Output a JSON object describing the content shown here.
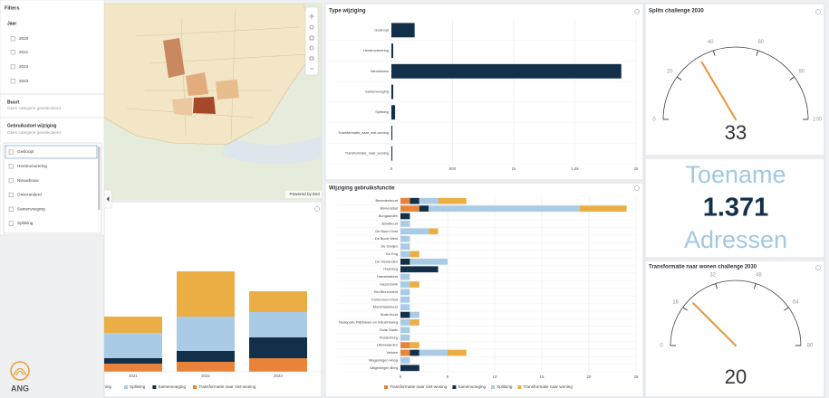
{
  "filters": {
    "title": "Filters",
    "year_label": "Jaar",
    "years": [
      "2020",
      "2021",
      "2022",
      "2023"
    ],
    "buurt_label": "Buurt",
    "buurt_value": "Geen categorie geselecteerd",
    "doel_label": "Gebruiksdoel wijziging",
    "doel_value": "Geen categorie geselecteerd",
    "options": [
      "Gesloopt",
      "Herstructurering",
      "Nieuwbouw",
      "Onveranderd",
      "Samenvoeging",
      "Splitsing"
    ]
  },
  "map": {
    "attribution": "Powered by Esri"
  },
  "logo": {
    "text": "ANG"
  },
  "kpi": {
    "top": "Toename",
    "value": "1.371",
    "bottom": "Adressen"
  },
  "chart_data": [
    {
      "type": "bar",
      "orientation": "horizontal",
      "title": "Type wijziging",
      "categories": [
        "Gesloopt",
        "Herstructurering",
        "Nieuwbouw",
        "Samenvoeging",
        "Splitsing",
        "Transformatie_naar_niet-woning",
        "Transformatie_naar_woning"
      ],
      "values": [
        190,
        15,
        1880,
        15,
        30,
        8,
        8
      ],
      "color": "#13304a",
      "xlim": [
        0,
        2000
      ],
      "xticks": [
        0,
        500,
        {
          "value": 1000,
          "label": "1k"
        },
        {
          "value": 1500,
          "label": "1,5k"
        },
        {
          "value": 2000,
          "label": "2k"
        }
      ],
      "grid": true
    },
    {
      "type": "bar",
      "orientation": "horizontal",
      "stacked": true,
      "title": "Wijziging gebruiksfunctie",
      "categories": [
        "Benedenbuurt",
        "Binnenstad",
        "Bongaarden",
        "Bowtbuurt",
        "De Buurt Oost",
        "De Buurt West",
        "De Dreijen",
        "De Eng",
        "De Hoolanden",
        "Haarweg",
        "Hamelakkers",
        "Hazendonk",
        "Het Binnenveld",
        "Kortenoord-Oost",
        "Mondriaanbuurt",
        "Nude buurt",
        "Nudepark, Rijnhaven en Industrieweg",
        "Oude Stads",
        "Rustenburg",
        "Uiterwaarden",
        "Veluwe",
        "Wageningen Hoog",
        "Wageningen Berg"
      ],
      "series": [
        {
          "name": "Transformatie naar niet-woning",
          "color": "#e8833a",
          "values": [
            1,
            2,
            0,
            0,
            0,
            0,
            0,
            0,
            0,
            0,
            0,
            0,
            0,
            0,
            0,
            0,
            0,
            0,
            0,
            1,
            1,
            0,
            0
          ]
        },
        {
          "name": "Samenvoeging",
          "color": "#13304a",
          "values": [
            1,
            1,
            1,
            0,
            0,
            0,
            0,
            0,
            1,
            4,
            0,
            0,
            0,
            0,
            0,
            1,
            0,
            0,
            0,
            0,
            1,
            0,
            2
          ]
        },
        {
          "name": "Splitsing",
          "color": "#a9cbe6",
          "values": [
            2,
            16,
            0,
            1,
            3,
            1,
            1,
            1,
            4,
            0,
            1,
            1,
            1,
            1,
            1,
            1,
            1,
            1,
            1,
            0,
            3,
            1,
            0
          ]
        },
        {
          "name": "Transformatie naar woning",
          "color": "#eaae45",
          "values": [
            3,
            5,
            0,
            0,
            1,
            0,
            0,
            1,
            0,
            0,
            0,
            1,
            0,
            0,
            0,
            0,
            1,
            0,
            0,
            1,
            2,
            0,
            0
          ]
        }
      ],
      "xlim": [
        0,
        25
      ],
      "xticks": [
        0,
        5,
        10,
        15,
        20,
        25
      ],
      "grid": true
    },
    {
      "type": "bar",
      "stacked": true,
      "categories": [
        "2021",
        "2022",
        "2023"
      ],
      "series": [
        {
          "name": "Transformatie naar niet-woning",
          "color": "#e8833a",
          "values": [
            9,
            11,
            15
          ]
        },
        {
          "name": "Samenvoeging",
          "color": "#13304a",
          "values": [
            6,
            12,
            23
          ]
        },
        {
          "name": "Splitsing",
          "color": "#a9cbe6",
          "values": [
            28,
            38,
            28
          ]
        },
        {
          "name": "Transformatie naar woning",
          "color": "#eaae45",
          "values": [
            18,
            50,
            23
          ]
        }
      ],
      "ylim": [
        0,
        180
      ]
    },
    {
      "type": "gauge",
      "title": "Splits challenge 2030",
      "value": 33,
      "ylim": [
        0,
        100
      ],
      "yticks": [
        0,
        20,
        40,
        60,
        80,
        100
      ],
      "color": "#e8943a"
    },
    {
      "type": "gauge",
      "title": "Transformatie naar wonen challenge 2030",
      "value": 20,
      "ylim": [
        0,
        80
      ],
      "yticks": [
        0,
        16,
        32,
        48,
        64,
        80
      ],
      "color": "#e8943a"
    }
  ]
}
